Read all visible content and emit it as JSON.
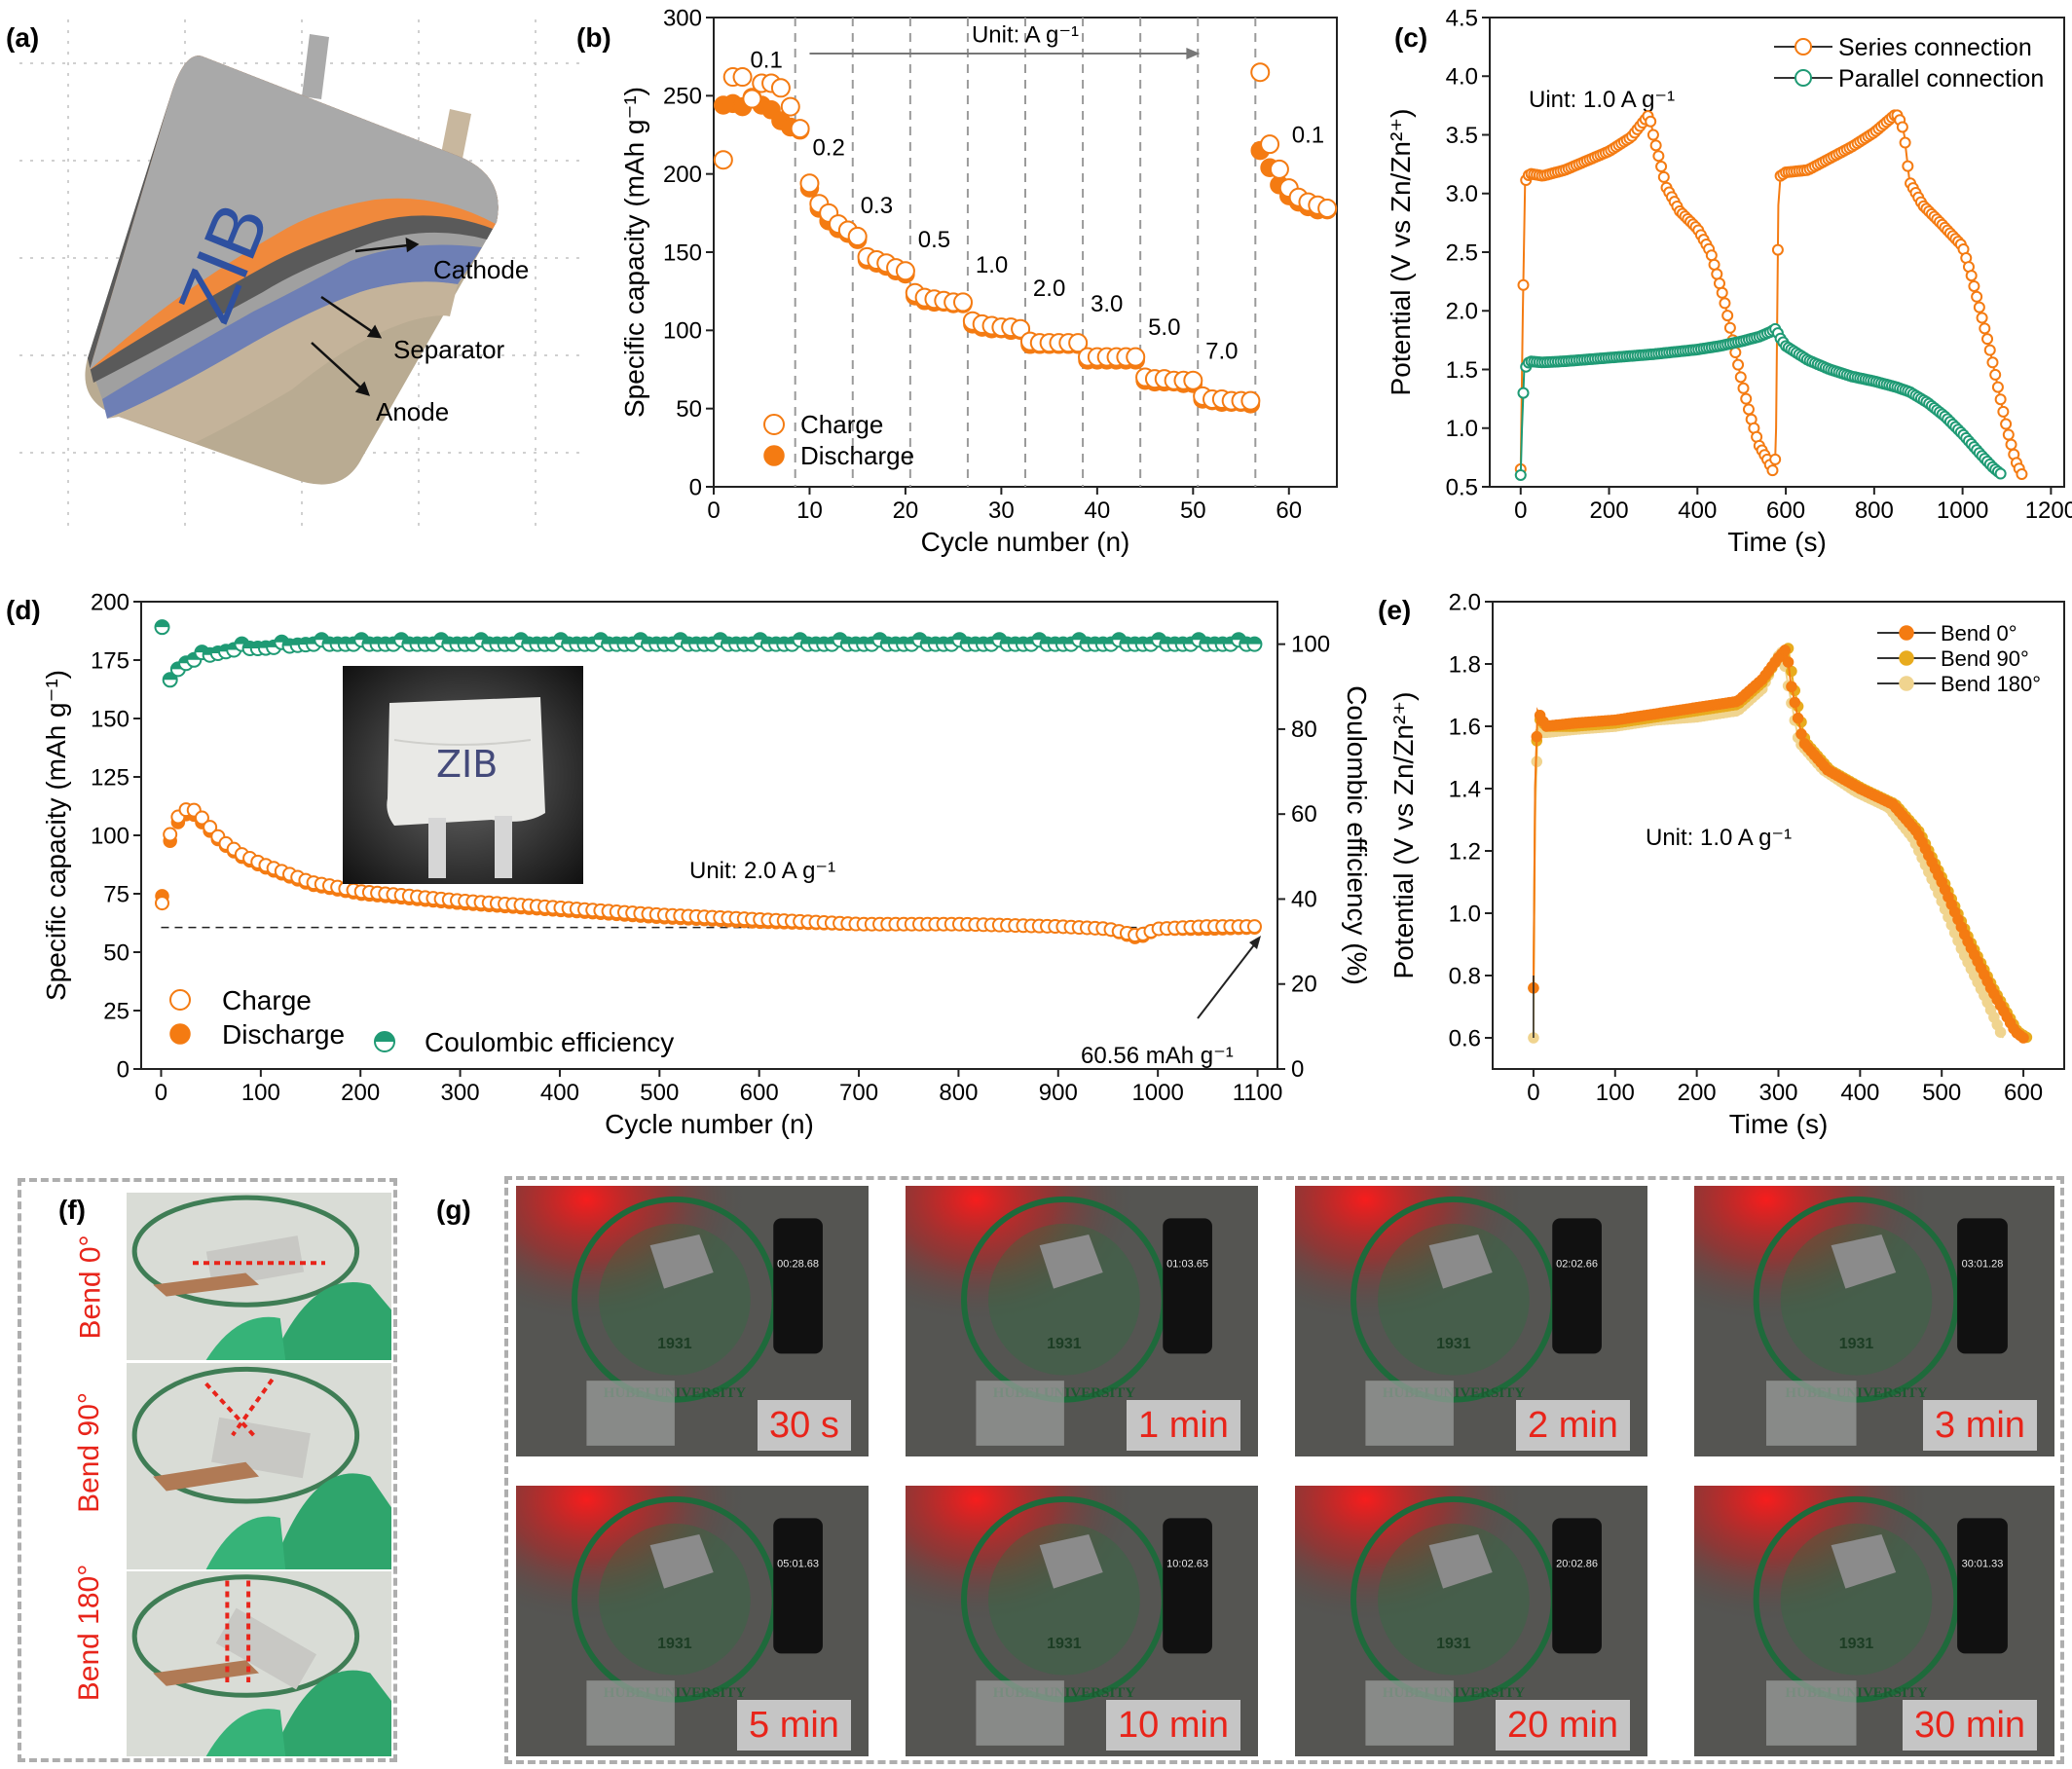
{
  "panels": {
    "a": {
      "label": "(a)",
      "brand": "ZIB",
      "cathode": "Cathode",
      "separator": "Separator",
      "anode": "Anode"
    },
    "b": {
      "label": "(b)",
      "unit_note": "Unit: A  g⁻¹"
    },
    "c": {
      "label": "(c)",
      "unit_note": "Uint: 1.0 A g⁻¹"
    },
    "d": {
      "label": "(d)",
      "unit_note": "Unit: 2.0 A g⁻¹",
      "annotation": "60.56 mAh g⁻¹",
      "inset_text": "ZIB"
    },
    "e": {
      "label": "(e)",
      "unit_note": "Unit: 1.0 A g⁻¹"
    },
    "f": {
      "label": "(f)",
      "bends": [
        "Bend 0°",
        "Bend 90°",
        "Bend 180°"
      ]
    },
    "g": {
      "label": "(g)",
      "times": [
        "30 s",
        "1 min",
        "2 min",
        "3 min",
        "5 min",
        "10 min",
        "20 min",
        "30 min"
      ],
      "stopwatch": [
        "00:28.68",
        "01:03.65",
        "02:02.66",
        "03:01.28",
        "05:01.63",
        "10:02.63",
        "20:02.86",
        "30:01.33"
      ],
      "logo_year": "1931",
      "logo_text": "HUBEI UNIVERSITY"
    }
  },
  "colors": {
    "orange": "#f47b12",
    "orange_light": "#f8a24c",
    "green": "#1f9a74",
    "yellow": "#e8ab1e",
    "cream": "#f0d48f"
  },
  "chart_data": [
    {
      "panel": "b",
      "type": "scatter",
      "xlabel": "Cycle number (n)",
      "ylabel": "Specific capacity (mAh g⁻¹)",
      "xlim": [
        0,
        65
      ],
      "ylim": [
        0,
        300
      ],
      "xticks": [
        0,
        10,
        20,
        30,
        40,
        50,
        60
      ],
      "yticks": [
        0,
        50,
        100,
        150,
        200,
        250,
        300
      ],
      "rate_labels": [
        {
          "text": "0.1",
          "x": 5.5,
          "y": 268
        },
        {
          "text": "0.2",
          "x": 12,
          "y": 212
        },
        {
          "text": "0.3",
          "x": 17,
          "y": 175
        },
        {
          "text": "0.5",
          "x": 23,
          "y": 153
        },
        {
          "text": "1.0",
          "x": 29,
          "y": 137
        },
        {
          "text": "2.0",
          "x": 35,
          "y": 122
        },
        {
          "text": "3.0",
          "x": 41,
          "y": 112
        },
        {
          "text": "5.0",
          "x": 47,
          "y": 97
        },
        {
          "text": "7.0",
          "x": 53,
          "y": 82
        },
        {
          "text": "0.1",
          "x": 62,
          "y": 220
        }
      ],
      "dividers": [
        8.5,
        14.5,
        20.5,
        26.5,
        32.5,
        38.5,
        44.5,
        50.5,
        56.5
      ],
      "series": [
        {
          "name": "Charge",
          "marker": "open",
          "x": [
            1,
            2,
            3,
            4,
            5,
            6,
            7,
            8,
            9,
            10,
            11,
            12,
            13,
            14,
            15,
            16,
            17,
            18,
            19,
            20,
            21,
            22,
            23,
            24,
            25,
            26,
            27,
            28,
            29,
            30,
            31,
            32,
            33,
            34,
            35,
            36,
            37,
            38,
            39,
            40,
            41,
            42,
            43,
            44,
            45,
            46,
            47,
            48,
            49,
            50,
            51,
            52,
            53,
            54,
            55,
            56,
            57,
            58,
            59,
            60,
            61,
            62,
            63,
            64
          ],
          "y": [
            209,
            262,
            262,
            248,
            258,
            258,
            255,
            243,
            229,
            194,
            181,
            175,
            168,
            164,
            160,
            147,
            145,
            143,
            140,
            138,
            124,
            121,
            120,
            119,
            118,
            118,
            106,
            104,
            103,
            102,
            102,
            101,
            93,
            92,
            92,
            92,
            92,
            92,
            83,
            83,
            83,
            83,
            83,
            83,
            70,
            69,
            69,
            68,
            68,
            68,
            58,
            56,
            56,
            55,
            55,
            55,
            265,
            219,
            203,
            191,
            185,
            182,
            180,
            178
          ]
        },
        {
          "name": "Discharge",
          "marker": "filled",
          "x": [
            1,
            2,
            3,
            4,
            5,
            6,
            7,
            8,
            9,
            10,
            11,
            12,
            13,
            14,
            15,
            16,
            17,
            18,
            19,
            20,
            21,
            22,
            23,
            24,
            25,
            26,
            27,
            28,
            29,
            30,
            31,
            32,
            33,
            34,
            35,
            36,
            37,
            38,
            39,
            40,
            41,
            42,
            43,
            44,
            45,
            46,
            47,
            48,
            49,
            50,
            51,
            52,
            53,
            54,
            55,
            56,
            57,
            58,
            59,
            60,
            61,
            62,
            63,
            64
          ],
          "y": [
            244,
            245,
            243,
            249,
            244,
            241,
            234,
            230,
            228,
            191,
            178,
            170,
            165,
            162,
            158,
            145,
            143,
            141,
            138,
            136,
            122,
            119,
            118,
            118,
            117,
            117,
            104,
            102,
            101,
            101,
            100,
            100,
            91,
            91,
            91,
            91,
            91,
            91,
            81,
            81,
            81,
            81,
            81,
            81,
            68,
            67,
            67,
            67,
            66,
            66,
            56,
            55,
            54,
            54,
            54,
            53,
            215,
            204,
            193,
            186,
            182,
            179,
            177,
            177
          ]
        }
      ],
      "legend": "bottom-left"
    },
    {
      "panel": "c",
      "type": "line",
      "xlabel": "Time (s)",
      "ylabel": "Potential (V vs Zn/Zn²⁺)",
      "xlim": [
        -70,
        1230
      ],
      "ylim": [
        0.5,
        4.5
      ],
      "xticks": [
        0,
        200,
        400,
        600,
        800,
        1000,
        1200
      ],
      "yticks": [
        0.5,
        1.0,
        1.5,
        2.0,
        2.5,
        3.0,
        3.5,
        4.0,
        4.5
      ],
      "series": [
        {
          "name": "Series connection",
          "x": [
            0,
            5,
            10,
            20,
            50,
            100,
            150,
            200,
            250,
            290,
            295,
            300,
            330,
            360,
            400,
            430,
            460,
            480,
            500,
            520,
            540,
            560,
            575,
            578,
            583,
            588,
            600,
            650,
            700,
            750,
            800,
            850,
            862,
            868,
            880,
            910,
            950,
            1000,
            1020,
            1040,
            1060,
            1080,
            1100,
            1120,
            1135
          ],
          "y": [
            0.65,
            2.0,
            3.1,
            3.17,
            3.15,
            3.2,
            3.28,
            3.36,
            3.48,
            3.67,
            3.6,
            3.5,
            3.05,
            2.85,
            2.7,
            2.5,
            2.1,
            1.75,
            1.4,
            1.1,
            0.85,
            0.72,
            0.6,
            1.0,
            2.9,
            3.15,
            3.18,
            3.2,
            3.3,
            3.4,
            3.52,
            3.68,
            3.6,
            3.5,
            3.1,
            2.9,
            2.75,
            2.55,
            2.3,
            2.0,
            1.7,
            1.35,
            1.0,
            0.72,
            0.6
          ]
        },
        {
          "name": "Parallel connection",
          "x": [
            0,
            3,
            8,
            20,
            50,
            100,
            200,
            300,
            400,
            450,
            500,
            540,
            565,
            578,
            585,
            600,
            650,
            700,
            750,
            800,
            850,
            880,
            920,
            960,
            1000,
            1040,
            1070,
            1090
          ],
          "y": [
            0.6,
            1.0,
            1.5,
            1.57,
            1.56,
            1.57,
            1.6,
            1.63,
            1.67,
            1.7,
            1.74,
            1.78,
            1.82,
            1.85,
            1.78,
            1.7,
            1.58,
            1.5,
            1.44,
            1.4,
            1.35,
            1.31,
            1.22,
            1.1,
            0.95,
            0.78,
            0.66,
            0.6
          ]
        }
      ],
      "legend": "top-right"
    },
    {
      "panel": "d",
      "type": "scatter",
      "xlabel": "Cycle number (n)",
      "ylabel": "Specific capacity (mAh g⁻¹)",
      "y2label": "Coulombic efficiency (%)",
      "xlim": [
        -20,
        1120
      ],
      "ylim": [
        0,
        200
      ],
      "y2lim": [
        0,
        110
      ],
      "xticks": [
        0,
        100,
        200,
        300,
        400,
        500,
        600,
        700,
        800,
        900,
        1000,
        1100
      ],
      "yticks": [
        0,
        25,
        50,
        75,
        100,
        125,
        150,
        175,
        200
      ],
      "y2ticks": [
        0,
        20,
        40,
        60,
        80,
        100
      ],
      "reference_line": 60.56,
      "series": [
        {
          "name": "Charge",
          "marker": "open",
          "x": [
            1,
            5,
            10,
            20,
            30,
            40,
            60,
            80,
            100,
            150,
            200,
            300,
            400,
            500,
            600,
            700,
            800,
            900,
            950,
            980,
            1000,
            1050,
            1100
          ],
          "y": [
            71,
            90,
            103,
            110,
            112,
            108,
            98,
            92,
            88,
            80,
            76,
            72,
            69,
            66,
            64,
            62,
            62,
            61,
            60,
            57,
            60,
            61,
            61
          ]
        },
        {
          "name": "Discharge",
          "marker": "filled",
          "x": [
            1,
            5,
            10,
            20,
            30,
            40,
            60,
            80,
            100,
            150,
            200,
            300,
            400,
            500,
            600,
            700,
            800,
            900,
            950,
            980,
            1000,
            1050,
            1100
          ],
          "y": [
            74,
            88,
            100,
            108,
            110,
            106,
            97,
            91,
            87,
            79,
            75,
            71,
            68,
            65,
            63,
            62,
            62,
            61,
            60,
            56,
            60,
            60,
            60.56
          ]
        },
        {
          "name": "Coulombic efficiency",
          "marker": "half",
          "axis": "y2",
          "x": [
            1,
            5,
            10,
            20,
            30,
            40,
            60,
            80,
            100,
            150,
            200,
            300,
            400,
            500,
            600,
            700,
            800,
            900,
            1000,
            1100
          ],
          "y": [
            103,
            90,
            92,
            95,
            96,
            97,
            98,
            99,
            99,
            100,
            100,
            100,
            100,
            100,
            100,
            100,
            100,
            100,
            100,
            100
          ]
        }
      ],
      "legend": "bottom-left"
    },
    {
      "panel": "e",
      "type": "line",
      "xlabel": "Time (s)",
      "ylabel": "Potential (V vs Zn/Zn²⁺)",
      "xlim": [
        -50,
        650
      ],
      "ylim": [
        0.5,
        2.0
      ],
      "xticks": [
        0,
        100,
        200,
        300,
        400,
        500,
        600
      ],
      "yticks": [
        0.6,
        0.8,
        1.0,
        1.2,
        1.4,
        1.6,
        1.8,
        2.0
      ],
      "series": [
        {
          "name": "Bend 0°",
          "x": [
            0,
            2,
            5,
            15,
            50,
            100,
            150,
            200,
            250,
            280,
            300,
            310,
            315,
            330,
            360,
            400,
            440,
            470,
            500,
            530,
            560,
            590,
            600
          ],
          "y": [
            0.76,
            1.4,
            1.65,
            1.6,
            1.61,
            1.62,
            1.64,
            1.66,
            1.68,
            1.75,
            1.82,
            1.85,
            1.74,
            1.55,
            1.46,
            1.4,
            1.35,
            1.26,
            1.1,
            0.92,
            0.76,
            0.62,
            0.6
          ]
        },
        {
          "name": "Bend 90°",
          "x": [
            0,
            2,
            5,
            15,
            50,
            100,
            150,
            200,
            250,
            280,
            300,
            312,
            318,
            333,
            363,
            403,
            443,
            473,
            503,
            533,
            563,
            593,
            605
          ],
          "y": [
            0.76,
            1.4,
            1.63,
            1.6,
            1.6,
            1.61,
            1.63,
            1.65,
            1.67,
            1.74,
            1.82,
            1.85,
            1.74,
            1.55,
            1.46,
            1.4,
            1.35,
            1.26,
            1.1,
            0.92,
            0.76,
            0.62,
            0.6
          ]
        },
        {
          "name": "Bend 180°",
          "x": [
            0,
            2,
            5,
            15,
            50,
            100,
            150,
            200,
            250,
            280,
            298,
            305,
            312,
            325,
            355,
            395,
            435,
            465,
            495,
            525,
            555,
            575
          ],
          "y": [
            0.6,
            1.3,
            1.58,
            1.58,
            1.59,
            1.6,
            1.62,
            1.63,
            1.65,
            1.72,
            1.82,
            1.84,
            1.73,
            1.55,
            1.46,
            1.39,
            1.34,
            1.24,
            1.07,
            0.88,
            0.72,
            0.6
          ]
        }
      ],
      "legend": "top-right"
    }
  ]
}
